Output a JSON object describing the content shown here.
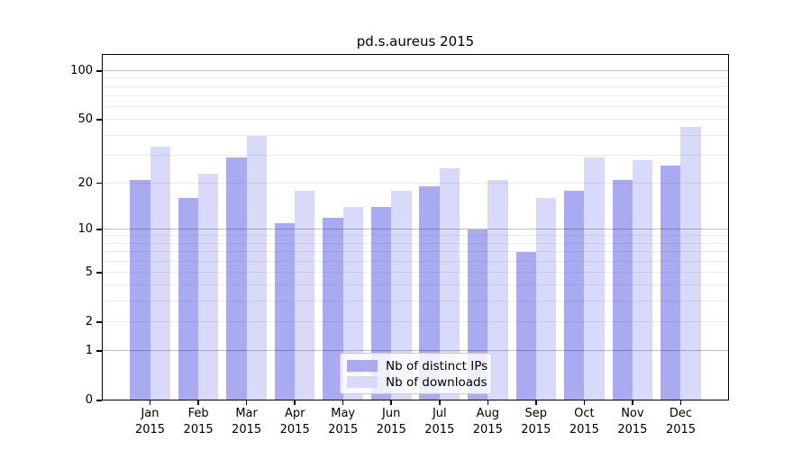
{
  "chart_data": {
    "type": "bar",
    "title": "pd.s.aureus 2015",
    "categories": [
      "Jan",
      "Feb",
      "Mar",
      "Apr",
      "May",
      "Jun",
      "Jul",
      "Aug",
      "Sep",
      "Oct",
      "Nov",
      "Dec"
    ],
    "category_year": "2015",
    "series": [
      {
        "name": "Nb of distinct IPs",
        "color": "#aaaaf3",
        "values": [
          21,
          16,
          29,
          11,
          12,
          14,
          19,
          10,
          7,
          18,
          21,
          26
        ]
      },
      {
        "name": "Nb of downloads",
        "color": "#d9d9fa",
        "values": [
          34,
          23,
          40,
          18,
          14,
          18,
          25,
          21,
          16,
          29,
          28,
          45
        ]
      }
    ],
    "xlabel": "",
    "ylabel": "",
    "y_axis": {
      "scale": "log(1+y)",
      "tick_labels": [
        "100",
        "50",
        "20",
        "10",
        "5",
        "2",
        "1",
        "0"
      ],
      "tick_values": [
        100,
        50,
        20,
        10,
        5,
        2,
        1,
        0
      ],
      "major_gridlines": [
        1,
        10,
        100
      ],
      "minor_gridlines": [
        2,
        3,
        4,
        5,
        6,
        7,
        8,
        9,
        20,
        30,
        40,
        50,
        60,
        70,
        80,
        90
      ],
      "ylim": [
        0,
        128
      ]
    },
    "legend": {
      "entries": [
        "Nb of distinct IPs",
        "Nb of downloads"
      ],
      "position": "bottom-center"
    },
    "grid": true
  }
}
